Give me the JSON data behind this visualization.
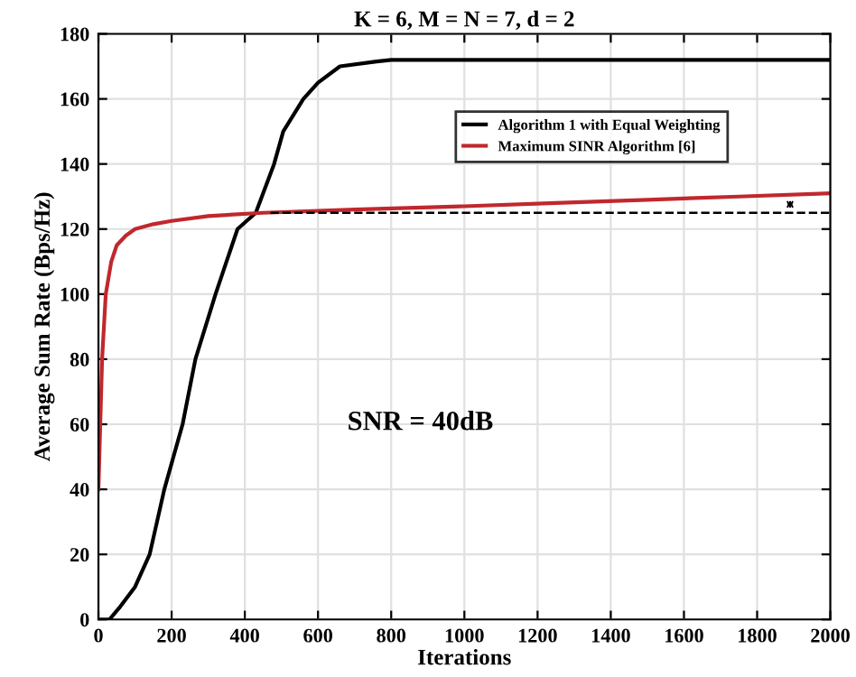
{
  "chart_data": {
    "type": "line",
    "title": "K = 6, M = N = 7, d = 2",
    "xlabel": "Iterations",
    "ylabel": "Average Sum Rate (Bps/Hz)",
    "xlim": [
      0,
      2000
    ],
    "ylim": [
      0,
      180
    ],
    "xticks": [
      0,
      200,
      400,
      600,
      800,
      1000,
      1200,
      1400,
      1600,
      1800,
      2000
    ],
    "yticks": [
      0,
      20,
      40,
      60,
      80,
      100,
      120,
      140,
      160,
      180
    ],
    "grid": true,
    "legend": "right",
    "line_style": "solid",
    "series": [
      {
        "name": "Algorithm 1 with Equal Weighting",
        "color": "#000000",
        "x": [
          0,
          30,
          60,
          100,
          140,
          180,
          230,
          265,
          320,
          380,
          430,
          480,
          505,
          560,
          600,
          660,
          760,
          800,
          1200,
          1600,
          2000
        ],
        "values": [
          0,
          0,
          4,
          10,
          20,
          40,
          60,
          80,
          100,
          120,
          125,
          140,
          150,
          160,
          165,
          170,
          171.5,
          172,
          172,
          172,
          172
        ]
      },
      {
        "name": "Maximum SINR Algorithm [6]",
        "color": "#c0282d",
        "x": [
          0,
          5,
          10,
          20,
          35,
          50,
          75,
          100,
          150,
          200,
          300,
          450,
          700,
          1000,
          1250,
          1500,
          1750,
          2000
        ],
        "values": [
          40,
          60,
          80,
          100,
          110,
          115,
          118,
          120,
          121.5,
          122.5,
          124,
          125,
          126,
          127,
          128,
          129,
          130,
          131
        ]
      },
      {
        "color": "#000000",
        "line_style": "dashed",
        "x": [
          470,
          2000
        ],
        "values": [
          125,
          125
        ]
      }
    ],
    "annotations": [
      "SNR = 40dB"
    ]
  }
}
